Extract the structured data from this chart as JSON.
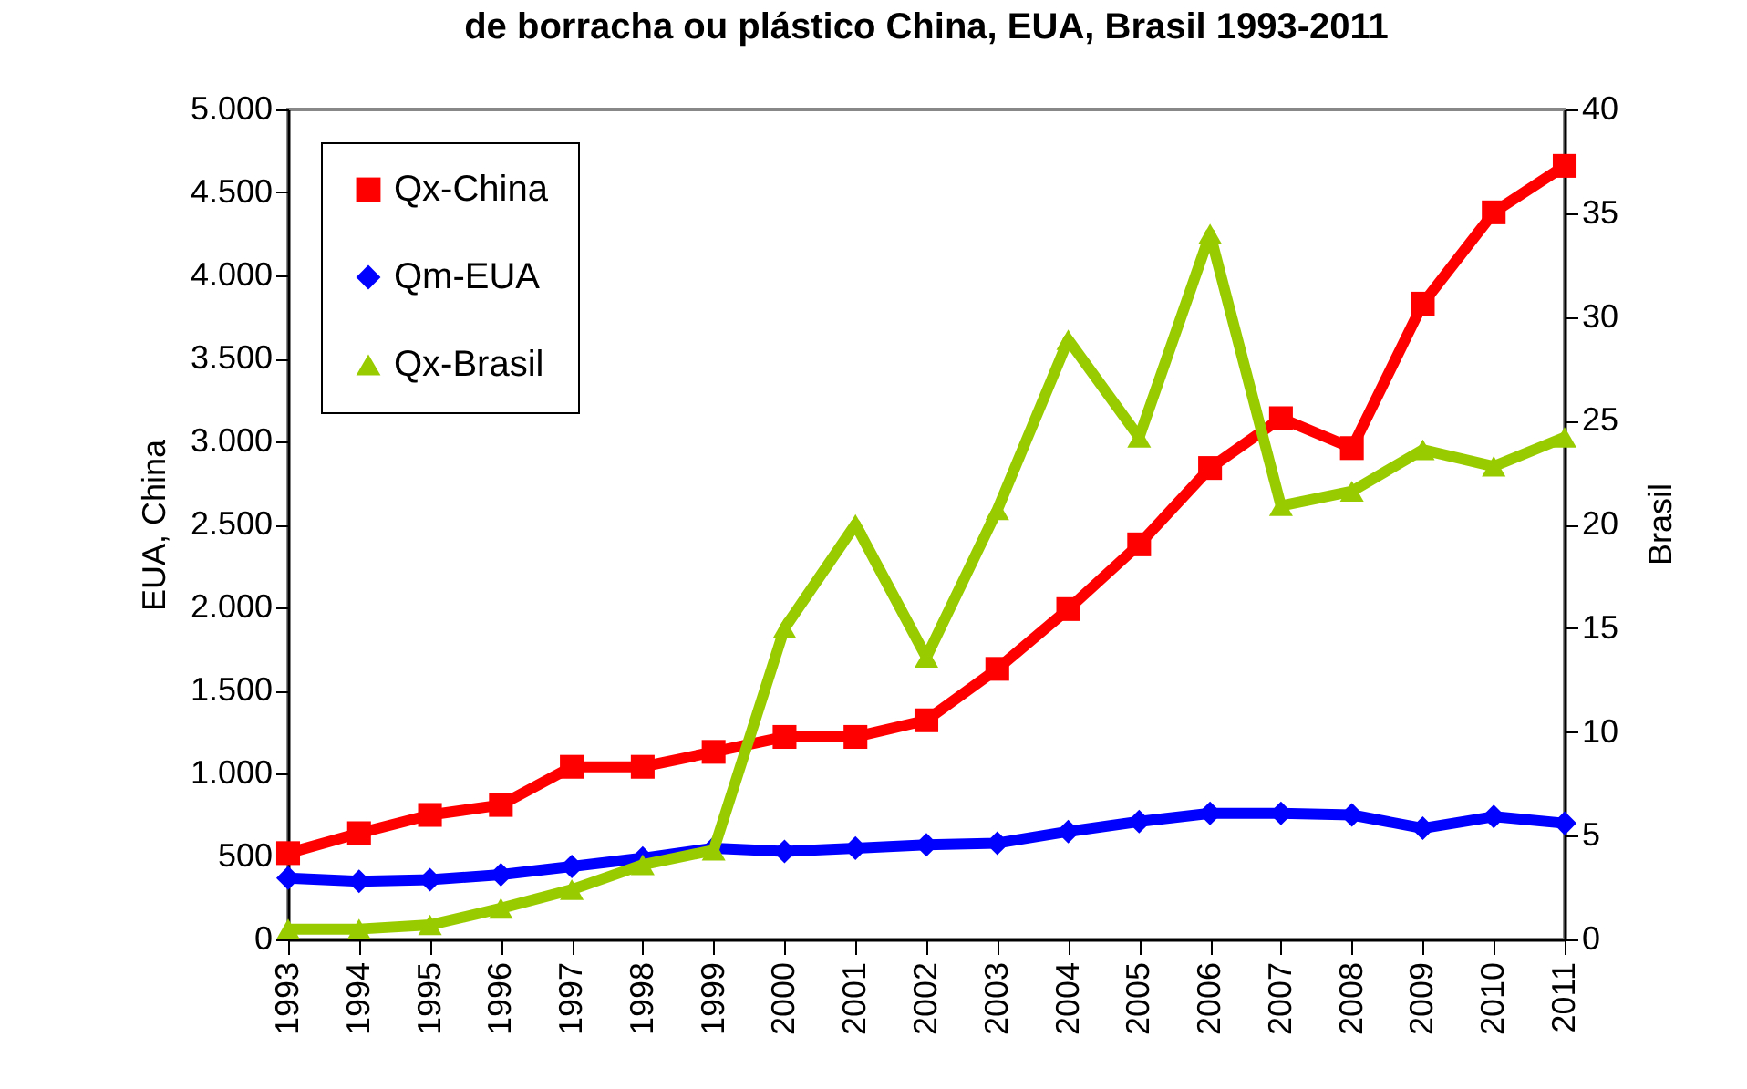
{
  "chart_data": {
    "type": "line",
    "title": "de borracha ou plástico      China, EUA, Brasil  1993-2011",
    "ylabel": "EUA, China",
    "y2label": "Brasil",
    "categories": [
      "1993",
      "1994",
      "1995",
      "1996",
      "1997",
      "1998",
      "1999",
      "2000",
      "2001",
      "2002",
      "2003",
      "2004",
      "2005",
      "2006",
      "2007",
      "2008",
      "2009",
      "2010",
      "2011"
    ],
    "series": [
      {
        "name": "Qx-China",
        "color": "#ff0000",
        "marker": "square",
        "values": [
          520,
          640,
          750,
          810,
          1040,
          1040,
          1130,
          1220,
          1220,
          1320,
          1630,
          1990,
          2380,
          2840,
          3140,
          2960,
          3830,
          4380,
          4660
        ]
      },
      {
        "name": "Qm-EUA",
        "color": "#0000ff",
        "marker": "diamond",
        "values": [
          370,
          350,
          360,
          390,
          440,
          490,
          550,
          530,
          550,
          570,
          580,
          650,
          710,
          760,
          760,
          750,
          670,
          740,
          700
        ]
      },
      {
        "name": "Qx-Brasil",
        "color": "#99cc00",
        "marker": "triangle",
        "axis": "y2",
        "values": [
          0.5,
          0.5,
          0.7,
          1.5,
          2.4,
          3.6,
          4.3,
          15.0,
          20.0,
          13.6,
          20.7,
          28.9,
          24.2,
          34.0,
          20.9,
          21.6,
          23.6,
          22.8,
          24.2
        ]
      }
    ],
    "ylim": [
      0,
      5000
    ],
    "yticks": [
      {
        "value": 0,
        "label": "0"
      },
      {
        "value": 500,
        "label": "500"
      },
      {
        "value": 1000,
        "label": "1.000"
      },
      {
        "value": 1500,
        "label": "1.500"
      },
      {
        "value": 2000,
        "label": "2.000"
      },
      {
        "value": 2500,
        "label": "2.500"
      },
      {
        "value": 3000,
        "label": "3.000"
      },
      {
        "value": 3500,
        "label": "3.500"
      },
      {
        "value": 4000,
        "label": "4.000"
      },
      {
        "value": 4500,
        "label": "4.500"
      },
      {
        "value": 5000,
        "label": "5.000"
      }
    ],
    "y2lim": [
      0,
      40
    ],
    "y2ticks": [
      0,
      5,
      10,
      15,
      20,
      25,
      30,
      35,
      40
    ],
    "legend": "top left",
    "grid": false
  }
}
